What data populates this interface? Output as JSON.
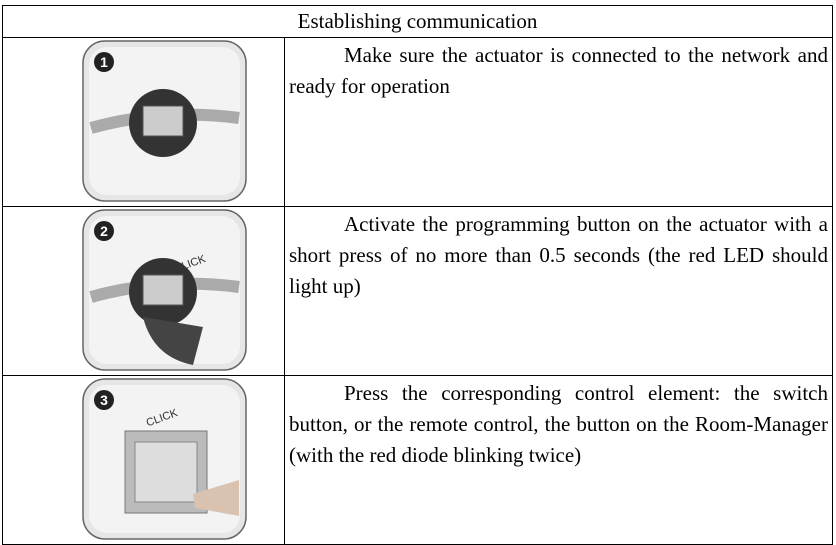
{
  "table": {
    "header": {
      "title": "Establishing communication"
    },
    "steps": [
      {
        "number": "1",
        "text": "Make sure the actuator is connected to the network and ready for operation"
      },
      {
        "number": "2",
        "callout": "CLICK",
        "text": "Activate the programming button on the actuator with a short press of no more than 0.5 seconds (the red LED should light up)"
      },
      {
        "number": "3",
        "callout": "CLICK",
        "text": "Press the corresponding control element: the switch button, or the remote control, the button on the Room-Manager (with the red diode blinking twice)"
      }
    ]
  }
}
